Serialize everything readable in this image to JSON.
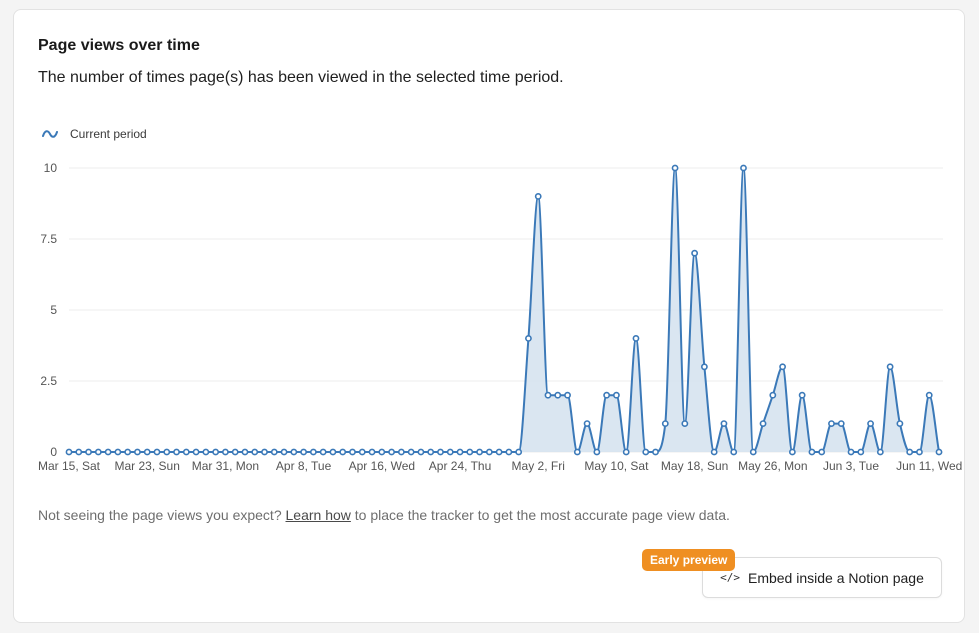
{
  "header": {
    "title": "Page views over time",
    "subtitle": "The number of times page(s) has been viewed in the selected time period."
  },
  "legend": {
    "label": "Current period",
    "icon": "wave-icon"
  },
  "note": {
    "before": "Not seeing the page views you expect? ",
    "link": "Learn how",
    "after": " to place the tracker to get the most accurate page view data."
  },
  "embed": {
    "label": "Embed inside a Notion page",
    "icon": "code-icon",
    "badge": "Early preview"
  },
  "colors": {
    "line": "#3b79b8",
    "fill": "#d6e3ef",
    "badge": "#ef8f22",
    "grid": "#ececec"
  },
  "chart_data": {
    "type": "area",
    "title": "Page views over time",
    "xlabel": "",
    "ylabel": "",
    "ylim": [
      0,
      10
    ],
    "yticks": [
      0,
      2.5,
      5,
      7.5,
      10
    ],
    "ytick_labels": [
      "0",
      "2.5",
      "5",
      "7.5",
      "10"
    ],
    "grid": true,
    "legend_position": "top-left",
    "xtick_labels": [
      {
        "index": 0,
        "label": "Mar 15, Sat"
      },
      {
        "index": 8,
        "label": "Mar 23, Sun"
      },
      {
        "index": 16,
        "label": "Mar 31, Mon"
      },
      {
        "index": 24,
        "label": "Apr 8, Tue"
      },
      {
        "index": 32,
        "label": "Apr 16, Wed"
      },
      {
        "index": 40,
        "label": "Apr 24, Thu"
      },
      {
        "index": 48,
        "label": "May 2, Fri"
      },
      {
        "index": 56,
        "label": "May 10, Sat"
      },
      {
        "index": 64,
        "label": "May 18, Sun"
      },
      {
        "index": 72,
        "label": "May 26, Mon"
      },
      {
        "index": 80,
        "label": "Jun 3, Tue"
      },
      {
        "index": 88,
        "label": "Jun 11, Wed"
      }
    ],
    "series": [
      {
        "name": "Current period",
        "values": [
          0,
          0,
          0,
          0,
          0,
          0,
          0,
          0,
          0,
          0,
          0,
          0,
          0,
          0,
          0,
          0,
          0,
          0,
          0,
          0,
          0,
          0,
          0,
          0,
          0,
          0,
          0,
          0,
          0,
          0,
          0,
          0,
          0,
          0,
          0,
          0,
          0,
          0,
          0,
          0,
          0,
          0,
          0,
          0,
          0,
          0,
          0,
          4,
          9,
          2,
          2,
          2,
          0,
          1,
          0,
          2,
          2,
          0,
          4,
          0,
          0,
          1,
          10,
          1,
          7,
          3,
          0,
          1,
          0,
          10,
          0,
          1,
          2,
          3,
          0,
          2,
          0,
          0,
          1,
          1,
          0,
          0,
          1,
          0,
          3,
          1,
          0,
          0,
          2,
          0
        ]
      }
    ]
  }
}
